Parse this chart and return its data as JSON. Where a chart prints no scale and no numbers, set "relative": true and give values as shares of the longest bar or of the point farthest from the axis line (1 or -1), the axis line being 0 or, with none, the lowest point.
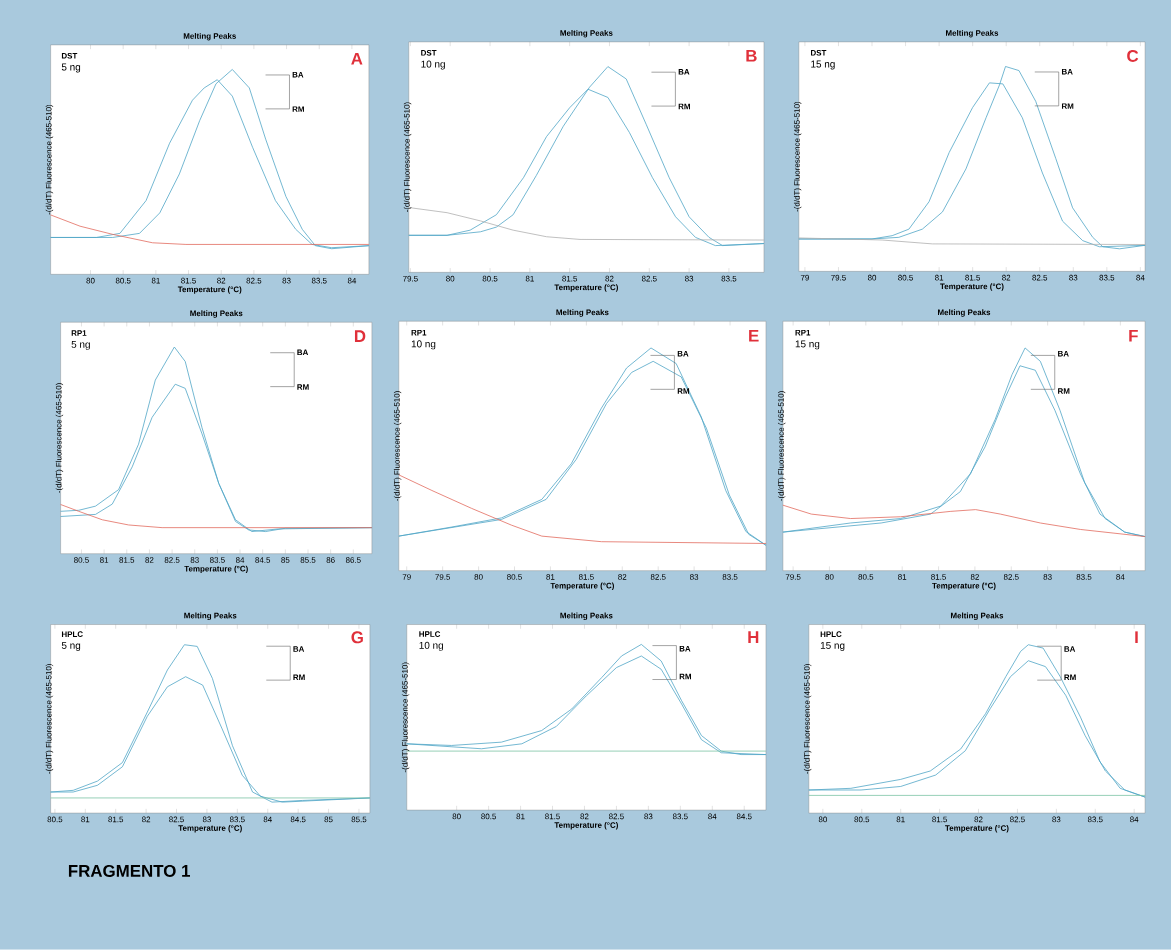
{
  "chart_data": [
    {
      "type": "line",
      "title": "Melting Peaks",
      "xlabel": "Temperature (°C)",
      "ylabel": "-(d/dT) Fluorescence (465-510)",
      "relative": true,
      "xlim": [
        79.39,
        84.26
      ],
      "xticks": [
        80,
        80.5,
        81,
        81.5,
        82,
        82.5,
        83,
        83.5,
        84
      ],
      "annotations": [
        "DST",
        "5 ng",
        "A",
        "BA",
        "RM"
      ],
      "series": [
        {
          "color": "#4fa6c6",
          "x": [
            79.39,
            80.34,
            80.75,
            81.06,
            81.36,
            81.67,
            81.92,
            82.17,
            82.43,
            82.68,
            82.99,
            83.24,
            83.44,
            83.69,
            84.26
          ],
          "values": [
            0.18,
            0.18,
            0.2,
            0.3,
            0.49,
            0.75,
            0.93,
            1.0,
            0.91,
            0.66,
            0.38,
            0.22,
            0.14,
            0.125,
            0.14
          ]
        },
        {
          "color": "#4fa6c6",
          "x": [
            79.39,
            80.09,
            80.45,
            80.85,
            81.21,
            81.56,
            81.74,
            81.94,
            82.17,
            82.48,
            82.83,
            83.14,
            83.39,
            83.69,
            84.26
          ],
          "values": [
            0.18,
            0.18,
            0.2,
            0.36,
            0.64,
            0.85,
            0.91,
            0.95,
            0.87,
            0.62,
            0.36,
            0.22,
            0.146,
            0.13,
            0.14
          ]
        },
        {
          "color": "#e26a5e",
          "x": [
            79.39,
            79.84,
            80.34,
            80.95,
            81.46,
            84.26
          ],
          "values": [
            0.29,
            0.235,
            0.195,
            0.154,
            0.146,
            0.146
          ]
        }
      ]
    },
    {
      "type": "line",
      "title": "Melting Peaks",
      "xlabel": "Temperature (°C)",
      "ylabel": "-(d/dT) Fluorescence (465-510)",
      "relative": true,
      "xlim": [
        79.48,
        83.94
      ],
      "xticks": [
        79.5,
        80,
        80.5,
        81,
        81.5,
        82,
        82.5,
        83,
        83.5
      ],
      "annotations": [
        "DST",
        "10 ng",
        "B",
        "BA",
        "RM"
      ],
      "series": [
        {
          "color": "#4fa6c6",
          "x": [
            79.48,
            79.96,
            80.38,
            80.58,
            80.79,
            81.08,
            81.42,
            81.75,
            81.98,
            82.21,
            82.46,
            82.75,
            83.0,
            83.25,
            83.42,
            83.94
          ],
          "values": [
            0.18,
            0.18,
            0.197,
            0.22,
            0.28,
            0.47,
            0.71,
            0.9,
            1.0,
            0.94,
            0.72,
            0.46,
            0.27,
            0.17,
            0.13,
            0.14
          ]
        },
        {
          "color": "#4fa6c6",
          "x": [
            79.48,
            79.96,
            80.25,
            80.58,
            80.92,
            81.21,
            81.5,
            81.73,
            81.98,
            82.25,
            82.54,
            82.83,
            83.08,
            83.33,
            83.94
          ],
          "values": [
            0.18,
            0.18,
            0.205,
            0.28,
            0.46,
            0.66,
            0.8,
            0.89,
            0.85,
            0.68,
            0.46,
            0.27,
            0.17,
            0.13,
            0.14
          ]
        },
        {
          "color": "#b0b0b0",
          "x": [
            79.48,
            79.96,
            80.38,
            80.79,
            81.21,
            81.63,
            83.94
          ],
          "values": [
            0.315,
            0.29,
            0.25,
            0.205,
            0.173,
            0.16,
            0.157
          ]
        }
      ]
    },
    {
      "type": "line",
      "title": "Melting Peaks",
      "xlabel": "Temperature (°C)",
      "ylabel": "-(d/dT) Fluorescence (465-510)",
      "relative": true,
      "xlim": [
        78.91,
        84.07
      ],
      "xticks": [
        79,
        79.5,
        80,
        80.5,
        81,
        81.5,
        82,
        82.5,
        83,
        83.5,
        84
      ],
      "annotations": [
        "DST",
        "15 ng",
        "C",
        "BA",
        "RM"
      ],
      "series": [
        {
          "color": "#4fa6c6",
          "x": [
            78.91,
            80.0,
            80.4,
            80.75,
            81.05,
            81.4,
            81.7,
            81.9,
            81.99,
            82.19,
            82.44,
            82.74,
            82.99,
            83.29,
            83.44,
            83.69,
            84.07
          ],
          "values": [
            0.158,
            0.158,
            0.166,
            0.206,
            0.29,
            0.5,
            0.75,
            0.91,
            1.0,
            0.98,
            0.83,
            0.55,
            0.31,
            0.166,
            0.12,
            0.11,
            0.127
          ]
        },
        {
          "color": "#4fa6c6",
          "x": [
            78.91,
            80.0,
            80.3,
            80.55,
            80.85,
            81.15,
            81.5,
            81.75,
            81.95,
            82.24,
            82.54,
            82.84,
            83.14,
            83.39,
            84.07
          ],
          "values": [
            0.158,
            0.158,
            0.174,
            0.206,
            0.34,
            0.58,
            0.8,
            0.92,
            0.915,
            0.75,
            0.48,
            0.245,
            0.15,
            0.12,
            0.127
          ]
        },
        {
          "color": "#b0b0b0",
          "x": [
            78.91,
            80.15,
            80.9,
            84.07
          ],
          "values": [
            0.163,
            0.153,
            0.134,
            0.131
          ]
        }
      ]
    },
    {
      "type": "line",
      "title": "Melting Peaks",
      "xlabel": "Temperature (°C)",
      "ylabel": "-(d/dT) Fluorescence (465-510)",
      "relative": true,
      "xlim": [
        80.04,
        86.91
      ],
      "xticks": [
        80.5,
        81,
        81.5,
        82,
        82.5,
        83,
        83.5,
        84,
        84.5,
        85,
        85.5,
        86,
        86.5
      ],
      "annotations": [
        "RP1",
        "5 ng",
        "D",
        "BA",
        "RM"
      ],
      "series": [
        {
          "color": "#4fa6c6",
          "x": [
            80.04,
            80.44,
            80.81,
            81.32,
            81.76,
            82.13,
            82.55,
            82.79,
            83.16,
            83.53,
            83.9,
            84.19,
            84.56,
            85.0,
            86.91
          ],
          "values": [
            0.205,
            0.21,
            0.23,
            0.31,
            0.53,
            0.84,
            1.0,
            0.93,
            0.61,
            0.34,
            0.156,
            0.115,
            0.107,
            0.123,
            0.126
          ]
        },
        {
          "color": "#4fa6c6",
          "x": [
            80.04,
            80.81,
            81.18,
            81.62,
            82.06,
            82.57,
            82.79,
            83.16,
            83.53,
            83.9,
            84.26,
            84.85,
            86.91
          ],
          "values": [
            0.18,
            0.19,
            0.24,
            0.42,
            0.66,
            0.82,
            0.8,
            0.58,
            0.34,
            0.164,
            0.107,
            0.12,
            0.126
          ]
        },
        {
          "color": "#e26a5e",
          "x": [
            80.04,
            80.44,
            80.96,
            81.54,
            82.28,
            86.91
          ],
          "values": [
            0.238,
            0.205,
            0.164,
            0.139,
            0.126,
            0.126
          ]
        }
      ]
    },
    {
      "type": "line",
      "title": "Melting Peaks",
      "xlabel": "Temperature (°C)",
      "ylabel": "-(d/dT) Fluorescence (465-510)",
      "relative": true,
      "xlim": [
        78.89,
        84.0
      ],
      "xticks": [
        79,
        79.5,
        80,
        80.5,
        81,
        81.5,
        82,
        82.5,
        83,
        83.5
      ],
      "annotations": [
        "RP1",
        "10 ng",
        "E",
        "BA",
        "RM"
      ],
      "series": [
        {
          "color": "#4fa6c6",
          "x": [
            78.89,
            79.63,
            80.32,
            80.88,
            81.29,
            81.71,
            82.06,
            82.4,
            82.75,
            83.1,
            83.44,
            83.72,
            84.0
          ],
          "values": [
            0.155,
            0.196,
            0.237,
            0.32,
            0.48,
            0.73,
            0.91,
            1.0,
            0.93,
            0.69,
            0.36,
            0.176,
            0.114
          ]
        },
        {
          "color": "#4fa6c6",
          "x": [
            78.89,
            80.32,
            80.94,
            81.36,
            81.78,
            82.13,
            82.43,
            82.82,
            83.17,
            83.49,
            83.76,
            84.0
          ],
          "values": [
            0.155,
            0.23,
            0.32,
            0.5,
            0.75,
            0.89,
            0.94,
            0.87,
            0.64,
            0.34,
            0.163,
            0.114
          ]
        },
        {
          "color": "#e26a5e",
          "x": [
            78.89,
            79.35,
            79.9,
            80.46,
            80.88,
            81.71,
            84.0
          ],
          "values": [
            0.43,
            0.36,
            0.28,
            0.204,
            0.155,
            0.13,
            0.122
          ]
        }
      ]
    },
    {
      "type": "line",
      "title": "Melting Peaks",
      "xlabel": "Temperature (°C)",
      "ylabel": "-(d/dT) Fluorescence (465-510)",
      "relative": true,
      "xlim": [
        79.36,
        84.34
      ],
      "xticks": [
        79.5,
        80,
        80.5,
        81,
        81.5,
        82,
        82.5,
        83,
        83.5,
        84
      ],
      "annotations": [
        "RP1",
        "15 ng",
        "F",
        "BA",
        "RM"
      ],
      "series": [
        {
          "color": "#4fa6c6",
          "x": [
            79.36,
            80.29,
            80.98,
            81.53,
            81.94,
            82.28,
            82.51,
            82.69,
            82.9,
            83.17,
            83.51,
            83.79,
            84.06,
            84.34
          ],
          "values": [
            0.173,
            0.214,
            0.234,
            0.29,
            0.435,
            0.68,
            0.88,
            1.0,
            0.94,
            0.72,
            0.395,
            0.234,
            0.173,
            0.153
          ]
        },
        {
          "color": "#4fa6c6",
          "x": [
            79.36,
            80.71,
            81.39,
            81.8,
            82.14,
            82.42,
            82.62,
            82.83,
            83.1,
            83.45,
            83.72,
            84.06,
            84.34
          ],
          "values": [
            0.173,
            0.214,
            0.254,
            0.355,
            0.556,
            0.78,
            0.92,
            0.9,
            0.72,
            0.435,
            0.254,
            0.173,
            0.153
          ]
        },
        {
          "color": "#e26a5e",
          "x": [
            79.36,
            79.75,
            80.29,
            80.98,
            81.66,
            82.01,
            82.35,
            82.9,
            83.45,
            84.34
          ],
          "values": [
            0.294,
            0.254,
            0.234,
            0.242,
            0.266,
            0.274,
            0.254,
            0.214,
            0.185,
            0.153
          ]
        }
      ]
    },
    {
      "type": "line",
      "title": "Melting Peaks",
      "xlabel": "Temperature (°C)",
      "ylabel": "-(d/dT) Fluorescence (465-510)",
      "relative": true,
      "xlim": [
        80.43,
        85.68
      ],
      "xticks": [
        80.5,
        81,
        81.5,
        82,
        82.5,
        83,
        83.5,
        84,
        84.5,
        85,
        85.5
      ],
      "annotations": [
        "HPLC",
        "5 ng",
        "G",
        "BA",
        "RM",
        "FRAGMENTO  1"
      ],
      "series": [
        {
          "color": "#4fa6c6",
          "x": [
            80.43,
            80.8,
            81.2,
            81.61,
            82.02,
            82.35,
            82.63,
            82.84,
            83.09,
            83.42,
            83.75,
            84.07,
            84.57,
            85.68
          ],
          "values": [
            0.125,
            0.135,
            0.19,
            0.3,
            0.6,
            0.85,
            1.0,
            0.99,
            0.8,
            0.4,
            0.125,
            0.065,
            0.075,
            0.09
          ]
        },
        {
          "color": "#4fa6c6",
          "x": [
            80.43,
            80.8,
            81.2,
            81.61,
            82.02,
            82.35,
            82.65,
            82.93,
            83.25,
            83.58,
            83.88,
            84.24,
            85.68
          ],
          "values": [
            0.125,
            0.125,
            0.165,
            0.275,
            0.575,
            0.75,
            0.81,
            0.76,
            0.5,
            0.225,
            0.1,
            0.065,
            0.09
          ]
        },
        {
          "color": "#7cc4a4",
          "x": [
            80.43,
            85.68
          ],
          "values": [
            0.09,
            0.09
          ]
        }
      ]
    },
    {
      "type": "line",
      "title": "Melting Peaks",
      "xlabel": "Temperature (°C)",
      "ylabel": "-(d/dT) Fluorescence (465-510)",
      "relative": true,
      "xlim": [
        79.22,
        84.84
      ],
      "xticks": [
        80,
        80.5,
        81,
        81.5,
        82,
        82.5,
        83,
        83.5,
        84,
        84.5
      ],
      "annotations": [
        "HPLC",
        "10 ng",
        "H",
        "BA",
        "RM"
      ],
      "series": [
        {
          "color": "#4fa6c6",
          "x": [
            79.22,
            79.92,
            80.7,
            81.33,
            81.8,
            82.27,
            82.58,
            82.89,
            83.2,
            83.52,
            83.83,
            84.14,
            84.45,
            84.84
          ],
          "values": [
            0.4,
            0.39,
            0.41,
            0.48,
            0.61,
            0.8,
            0.93,
            1.0,
            0.9,
            0.66,
            0.45,
            0.356,
            0.335,
            0.335
          ]
        },
        {
          "color": "#4fa6c6",
          "x": [
            79.22,
            80.39,
            81.02,
            81.56,
            82.03,
            82.5,
            82.89,
            83.2,
            83.52,
            83.83,
            84.14,
            84.84
          ],
          "values": [
            0.4,
            0.37,
            0.4,
            0.505,
            0.69,
            0.86,
            0.93,
            0.85,
            0.64,
            0.425,
            0.346,
            0.335
          ]
        },
        {
          "color": "#7cc4a4",
          "x": [
            79.22,
            84.84
          ],
          "values": [
            0.356,
            0.356
          ]
        }
      ]
    },
    {
      "type": "line",
      "title": "Melting Peaks",
      "xlabel": "Temperature (°C)",
      "ylabel": "-(d/dT) Fluorescence (465-510)",
      "relative": true,
      "xlim": [
        79.82,
        84.14
      ],
      "xticks": [
        80,
        80.5,
        81,
        81.5,
        82,
        82.5,
        83,
        83.5,
        84
      ],
      "annotations": [
        "HPLC",
        "15 ng",
        "I",
        "BA",
        "RM"
      ],
      "series": [
        {
          "color": "#4fa6c6",
          "x": [
            79.82,
            80.36,
            81.0,
            81.38,
            81.77,
            82.09,
            82.35,
            82.54,
            82.64,
            82.83,
            83.05,
            83.31,
            83.56,
            83.82,
            84.14
          ],
          "values": [
            0.137,
            0.147,
            0.2,
            0.25,
            0.38,
            0.59,
            0.81,
            0.96,
            1.0,
            0.98,
            0.81,
            0.57,
            0.305,
            0.147,
            0.095
          ]
        },
        {
          "color": "#4fa6c6",
          "x": [
            79.82,
            80.49,
            81.0,
            81.45,
            81.83,
            82.15,
            82.41,
            82.64,
            82.86,
            83.12,
            83.37,
            83.63,
            83.88,
            84.14
          ],
          "values": [
            0.137,
            0.137,
            0.158,
            0.226,
            0.37,
            0.62,
            0.81,
            0.905,
            0.87,
            0.7,
            0.46,
            0.25,
            0.137,
            0.095
          ]
        },
        {
          "color": "#7cc4a4",
          "x": [
            79.82,
            84.14
          ],
          "values": [
            0.105,
            0.105
          ]
        }
      ]
    }
  ]
}
